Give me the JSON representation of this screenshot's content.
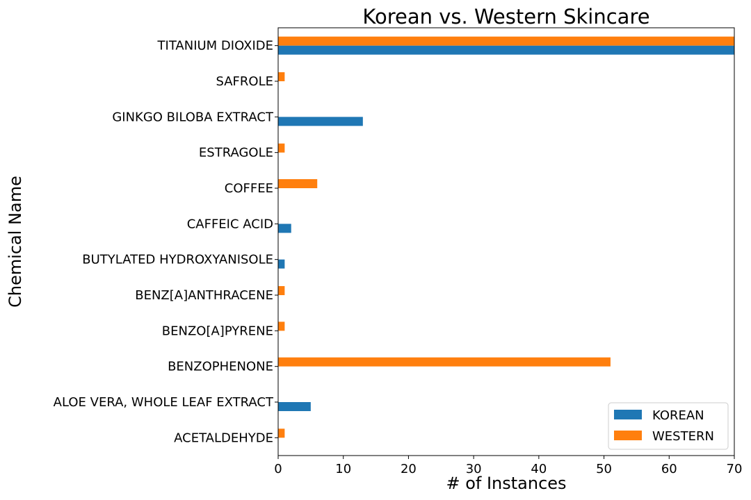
{
  "chart_data": {
    "type": "bar",
    "orientation": "horizontal",
    "title": "Korean vs. Western Skincare",
    "xlabel": "# of Instances",
    "ylabel": "Chemical Name",
    "xlim": [
      0,
      70
    ],
    "x_ticks": [
      "0",
      "10",
      "20",
      "30",
      "40",
      "50",
      "60",
      "70"
    ],
    "categories": [
      "ACETALDEHYDE",
      "ALOE VERA, WHOLE LEAF EXTRACT",
      "BENZOPHENONE",
      "BENZO[A]PYRENE",
      "BENZ[A]ANTHRACENE",
      "BUTYLATED HYDROXYANISOLE",
      "CAFFEIC ACID",
      "COFFEE",
      "ESTRAGOLE",
      "GINKGO BILOBA EXTRACT",
      "SAFROLE",
      "TITANIUM DIOXIDE"
    ],
    "series": [
      {
        "name": "KOREAN",
        "color": "#1f77b4",
        "values": [
          0,
          5,
          0,
          0,
          0,
          1,
          2,
          0,
          0,
          13,
          0,
          70
        ]
      },
      {
        "name": "WESTERN",
        "color": "#ff7f0e",
        "values": [
          1,
          0,
          51,
          1,
          1,
          0,
          0,
          6,
          1,
          0,
          1,
          70
        ]
      }
    ],
    "legend_position": "lower-right",
    "grid": false
  }
}
